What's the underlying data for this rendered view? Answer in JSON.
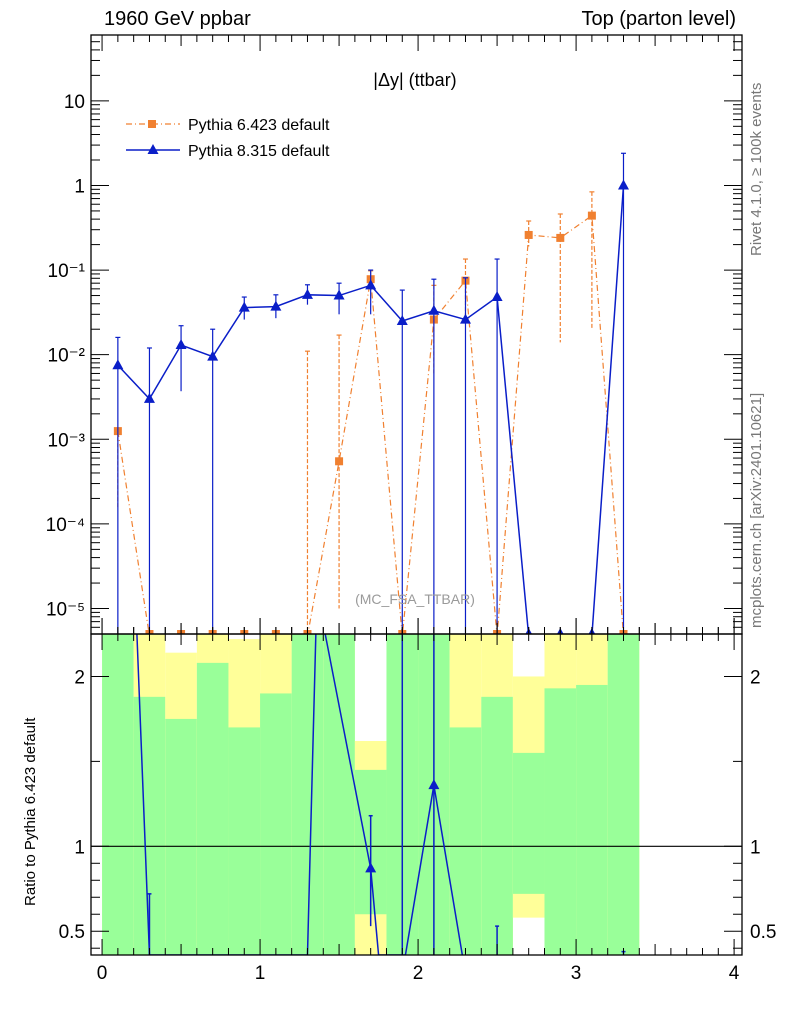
{
  "header": {
    "left": "1960 GeV ppbar",
    "right": "Top (parton level)"
  },
  "side_labels": {
    "rivet": "Rivet 4.1.0, ≥ 100k events",
    "mcplots": "mcplots.cern.ch [arXiv:2401.10621]"
  },
  "chart_data": {
    "type": "line",
    "title": "|Δy| (ttbar)",
    "watermark": "(MC_FSA_TTBAR)",
    "xlabel": "",
    "ylabel": "",
    "ratio_ylabel": "Ratio to Pythia 6.423 default",
    "xlim": [
      -0.07,
      4.05
    ],
    "ylim_log": [
      5e-06,
      60
    ],
    "ratio_ylim": [
      0.36,
      2.25
    ],
    "x_ticks": [
      "0",
      "1",
      "2",
      "3",
      "4"
    ],
    "y_ticks": [
      "10",
      "1",
      "10⁻¹",
      "10⁻²",
      "10⁻³",
      "10⁻⁴",
      "10⁻⁵"
    ],
    "ratio_y_ticks": [
      "2",
      "1",
      "0.5"
    ],
    "legend_position": "top-left",
    "x": [
      0.1,
      0.3,
      0.5,
      0.7,
      0.9,
      1.1,
      1.3,
      1.5,
      1.7,
      1.9,
      2.1,
      2.3,
      2.5,
      2.7,
      2.9,
      3.1,
      3.3
    ],
    "series": [
      {
        "name": "Pythia 6.423 default",
        "color": "#f08030",
        "marker": "square",
        "style": "dashdot",
        "values": [
          0.00125,
          0,
          0,
          0,
          0,
          0,
          0,
          0.00055,
          0.078,
          0,
          0.026,
          0.075,
          0,
          0.26,
          0.24,
          0.44,
          0
        ],
        "err_low": [
          0.0011,
          0,
          0,
          0,
          0,
          0,
          0,
          0.00054,
          0.02,
          0,
          0.02,
          0.05,
          0,
          0.07,
          0.226,
          0.42,
          0
        ],
        "err_high": [
          0.0,
          0,
          0,
          0,
          0,
          0,
          0.011,
          0.0165,
          0.02,
          0,
          0.04,
          0.06,
          0,
          0.12,
          0.22,
          0.4,
          0
        ]
      },
      {
        "name": "Pythia 8.315 default",
        "color": "#0a1ec8",
        "marker": "triangle",
        "style": "solid",
        "values": [
          0.0075,
          0.003,
          0.013,
          0.0095,
          0.036,
          0.037,
          0.051,
          0.05,
          0.066,
          0.025,
          0.033,
          0.026,
          0.048,
          0,
          0,
          0,
          1.0
        ],
        "err_low": [
          0.0075,
          0.003,
          0.0093,
          0.0095,
          0.01,
          0.01,
          0.012,
          0.02,
          0.036,
          0.025,
          0.033,
          0.026,
          0.048,
          0,
          0,
          0,
          1.0
        ],
        "err_high": [
          0.0085,
          0.009,
          0.009,
          0.0105,
          0.012,
          0.014,
          0.016,
          0.02,
          0.034,
          0.033,
          0.045,
          0.055,
          0.087,
          0,
          0,
          0,
          1.4
        ]
      }
    ],
    "ratio": {
      "band_x_edges": [
        0.0,
        0.2,
        0.4,
        0.6,
        0.8,
        1.0,
        1.2,
        1.4,
        1.6,
        1.8,
        2.0,
        2.2,
        2.4,
        2.6,
        2.8,
        3.0,
        3.2,
        3.4
      ],
      "yellow_low": [
        0.36,
        0.36,
        0.43,
        0.36,
        0.36,
        0.36,
        0.36,
        0.36,
        0.36,
        0.36,
        0.36,
        0.36,
        0.36,
        0.58,
        0.36,
        0.36,
        0.36
      ],
      "yellow_high": [
        2.3,
        2.3,
        2.14,
        2.3,
        2.22,
        2.3,
        2.3,
        2.3,
        1.62,
        2.3,
        2.3,
        2.3,
        2.3,
        2.0,
        2.3,
        2.3,
        2.3
      ],
      "green_low": [
        0.36,
        0.36,
        0.36,
        0.36,
        0.36,
        0.36,
        0.36,
        0.36,
        0.6,
        0.36,
        0.36,
        0.36,
        0.36,
        0.72,
        0.36,
        0.36,
        0.36
      ],
      "green_high": [
        2.3,
        1.88,
        1.75,
        2.08,
        1.7,
        1.9,
        2.3,
        2.3,
        1.45,
        2.3,
        2.3,
        1.7,
        1.88,
        1.55,
        1.93,
        1.95,
        2.3
      ],
      "p8_ratio_line_x": [
        0.21,
        0.3,
        0.3,
        1.3,
        1.36,
        1.7,
        1.75,
        1.92,
        2.1,
        2.28
      ],
      "p8_ratio_line_y": [
        2.5,
        0.36,
        0.36,
        0.36,
        2.5,
        0.87,
        0.36,
        0.36,
        1.36,
        0.36
      ],
      "p8_ratio_points_x": [
        1.7,
        2.1
      ],
      "p8_ratio_points_y": [
        0.87,
        1.36
      ],
      "p8_ratio_err_x": [
        0.3,
        1.7,
        1.9,
        2.1,
        2.5,
        3.3
      ],
      "p8_ratio_err_low": [
        0.36,
        0.53,
        0.36,
        0.36,
        0.36,
        0.36
      ],
      "p8_ratio_err_high": [
        0.72,
        1.18,
        2.5,
        2.5,
        0.53,
        0.38
      ]
    }
  }
}
